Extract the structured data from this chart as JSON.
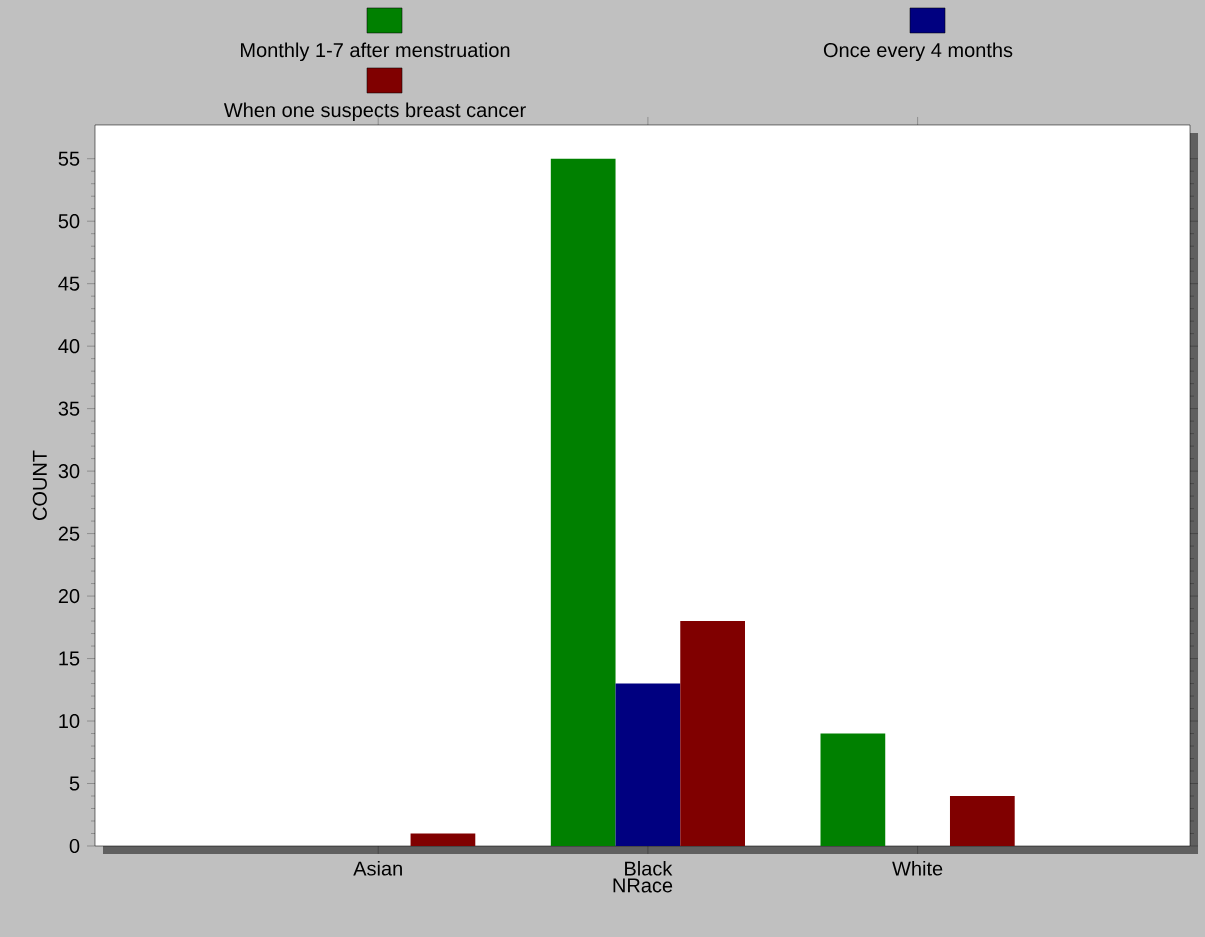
{
  "chart_data": {
    "type": "bar",
    "xlabel": "NRace",
    "ylabel": "COUNT",
    "categories": [
      "Asian",
      "Black",
      "White"
    ],
    "series": [
      {
        "name": "Monthly 1-7 after menstruation",
        "color": "#008000",
        "values": [
          0,
          55,
          9
        ]
      },
      {
        "name": "Once every 4 months",
        "color": "#000080",
        "values": [
          0,
          13,
          0
        ]
      },
      {
        "name": "When one suspects breast cancer",
        "color": "#800000",
        "values": [
          1,
          18,
          4
        ]
      }
    ],
    "ylim": [
      0,
      57.7
    ],
    "yticks": [
      0,
      5,
      10,
      15,
      20,
      25,
      30,
      35,
      40,
      45,
      50,
      55
    ],
    "legend": "top",
    "grid": false
  }
}
